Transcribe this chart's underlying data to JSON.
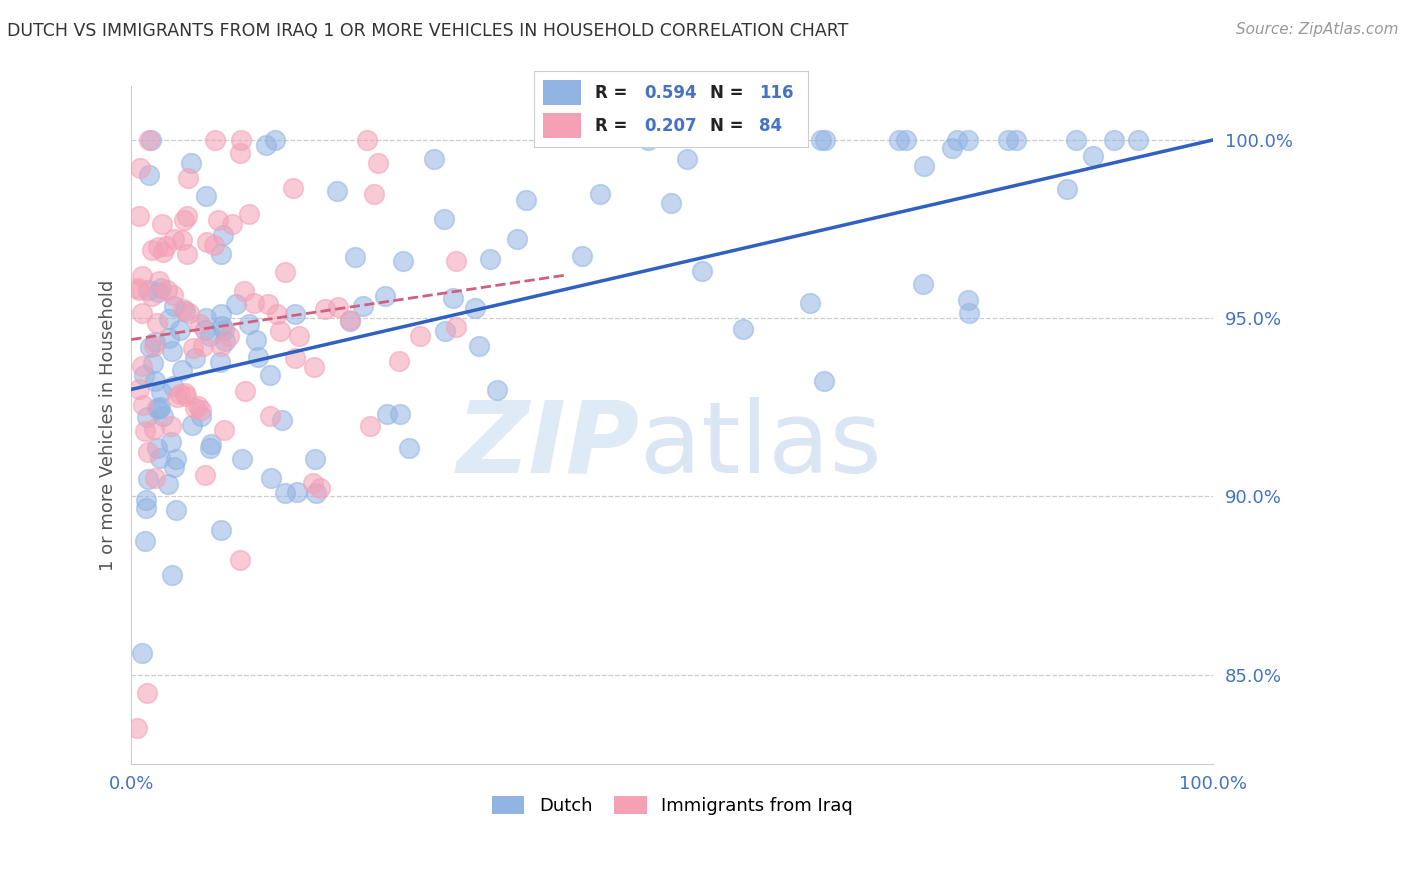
{
  "title": "DUTCH VS IMMIGRANTS FROM IRAQ 1 OR MORE VEHICLES IN HOUSEHOLD CORRELATION CHART",
  "source": "Source: ZipAtlas.com",
  "ylabel": "1 or more Vehicles in Household",
  "ytick_labels": [
    "85.0%",
    "90.0%",
    "95.0%",
    "100.0%"
  ],
  "ytick_values": [
    0.85,
    0.9,
    0.95,
    1.0
  ],
  "xlim": [
    0.0,
    1.0
  ],
  "ylim": [
    0.825,
    1.015
  ],
  "legend_dutch_R": "0.594",
  "legend_dutch_N": "116",
  "legend_iraq_R": "0.207",
  "legend_iraq_N": "84",
  "watermark_zip": "ZIP",
  "watermark_atlas": "atlas",
  "dutch_color": "#92b4e3",
  "iraq_color": "#f4a0b5",
  "dutch_line_color": "#3060c0",
  "iraq_line_color": "#d06080",
  "title_color": "#333333",
  "tick_color": "#4472c4",
  "background_color": "#ffffff",
  "dutch_line_start_x": 0.0,
  "dutch_line_start_y": 0.93,
  "dutch_line_end_x": 1.0,
  "dutch_line_end_y": 1.0,
  "iraq_line_start_x": 0.0,
  "iraq_line_start_y": 0.947,
  "iraq_line_end_x": 0.35,
  "iraq_line_end_y": 0.962
}
